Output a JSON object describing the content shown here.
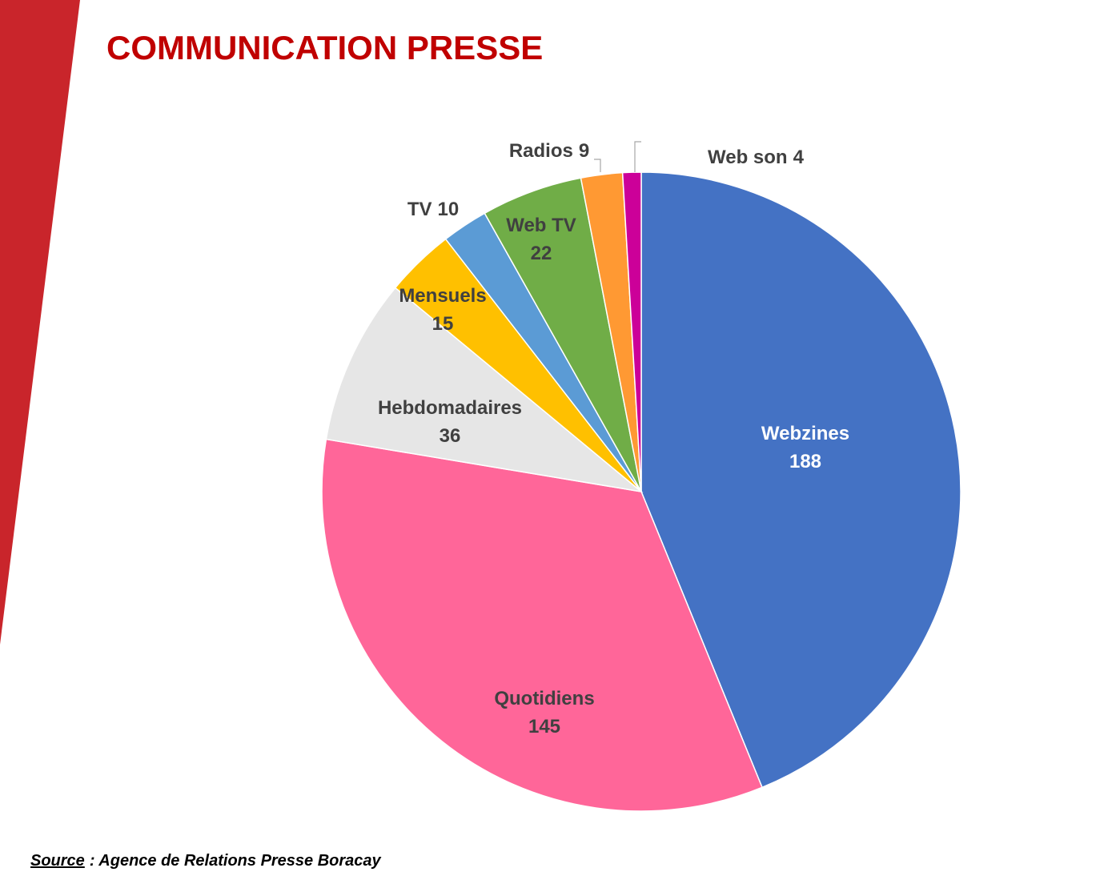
{
  "chart_data": {
    "type": "pie",
    "title": "COMMUNICATION PRESSE",
    "categories": [
      "Webzines",
      "Quotidiens",
      "Hebdomadaires",
      "Mensuels",
      "TV",
      "Web TV",
      "Radios",
      "Web son"
    ],
    "values": [
      188,
      145,
      36,
      15,
      10,
      22,
      9,
      4
    ],
    "colors": [
      "#4472c4",
      "#ff6699",
      "#e6e6e6",
      "#ffc000",
      "#5b9bd5",
      "#70ad47",
      "#ff9933",
      "#cc0099"
    ],
    "source_label": "Source",
    "source_text": ": Agence de Relations Presse Boracay"
  }
}
